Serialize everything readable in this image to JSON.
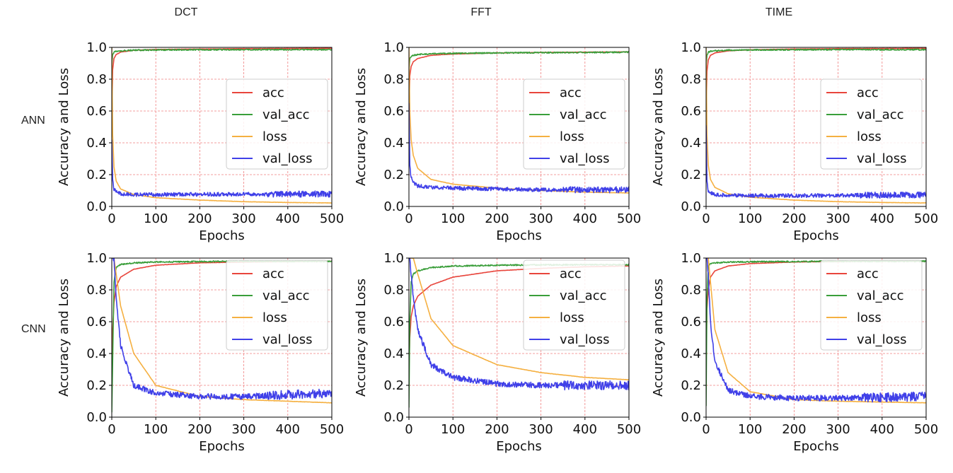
{
  "figure": {
    "column_titles": [
      "DCT",
      "FFT",
      "TIME"
    ],
    "row_labels": [
      "ANN",
      "CNN"
    ]
  },
  "colors": {
    "acc": "#e8453c",
    "val_acc": "#3a9e3a",
    "loss": "#f5b041",
    "val_loss": "#4040e8",
    "grid": "#f08080"
  },
  "chart_data": [
    {
      "type": "line",
      "panel": "ANN-DCT",
      "row": "ANN",
      "column": "DCT",
      "title": "",
      "xlabel": "Epochs",
      "ylabel": "Accuracy and Loss",
      "xlim": [
        0,
        500
      ],
      "ylim": [
        0,
        1.0
      ],
      "xticks": [
        0,
        100,
        200,
        300,
        400,
        500
      ],
      "yticks": [
        0.0,
        0.2,
        0.4,
        0.6,
        0.8,
        1.0
      ],
      "grid": true,
      "legend_position": "center-right",
      "series": [
        {
          "name": "acc",
          "x": [
            0,
            2,
            5,
            10,
            20,
            50,
            100,
            200,
            300,
            400,
            500
          ],
          "y": [
            0.55,
            0.86,
            0.93,
            0.955,
            0.97,
            0.982,
            0.987,
            0.99,
            0.992,
            0.993,
            0.994
          ]
        },
        {
          "name": "val_acc",
          "x": [
            0,
            2,
            5,
            10,
            20,
            50,
            100,
            200,
            300,
            400,
            500
          ],
          "y": [
            0.88,
            0.955,
            0.97,
            0.975,
            0.978,
            0.982,
            0.984,
            0.985,
            0.986,
            0.986,
            0.986
          ]
        },
        {
          "name": "loss",
          "x": [
            0,
            2,
            5,
            10,
            20,
            50,
            100,
            200,
            300,
            400,
            500
          ],
          "y": [
            1.0,
            0.45,
            0.25,
            0.16,
            0.11,
            0.075,
            0.055,
            0.04,
            0.03,
            0.025,
            0.022
          ]
        },
        {
          "name": "val_loss",
          "x": [
            0,
            2,
            5,
            10,
            20,
            50,
            100,
            200,
            300,
            400,
            500
          ],
          "y": [
            0.42,
            0.17,
            0.11,
            0.09,
            0.08,
            0.075,
            0.075,
            0.076,
            0.077,
            0.078,
            0.078
          ]
        }
      ]
    },
    {
      "type": "line",
      "panel": "ANN-FFT",
      "row": "ANN",
      "column": "FFT",
      "title": "",
      "xlabel": "Epochs",
      "ylabel": "Accuracy and Loss",
      "xlim": [
        0,
        500
      ],
      "ylim": [
        0,
        1.0
      ],
      "xticks": [
        0,
        100,
        200,
        300,
        400,
        500
      ],
      "yticks": [
        0.0,
        0.2,
        0.4,
        0.6,
        0.8,
        1.0
      ],
      "grid": true,
      "legend_position": "center-right",
      "series": [
        {
          "name": "acc",
          "x": [
            0,
            2,
            5,
            10,
            20,
            50,
            100,
            200,
            300,
            400,
            500
          ],
          "y": [
            0.6,
            0.82,
            0.88,
            0.91,
            0.93,
            0.95,
            0.958,
            0.965,
            0.968,
            0.97,
            0.972
          ]
        },
        {
          "name": "val_acc",
          "x": [
            0,
            2,
            5,
            10,
            20,
            50,
            100,
            200,
            300,
            400,
            500
          ],
          "y": [
            0.85,
            0.93,
            0.945,
            0.95,
            0.955,
            0.96,
            0.962,
            0.965,
            0.967,
            0.968,
            0.97
          ]
        },
        {
          "name": "loss",
          "x": [
            0,
            2,
            5,
            10,
            20,
            50,
            100,
            200,
            300,
            400,
            500
          ],
          "y": [
            1.0,
            0.6,
            0.42,
            0.32,
            0.24,
            0.17,
            0.14,
            0.115,
            0.1,
            0.09,
            0.085
          ]
        },
        {
          "name": "val_loss",
          "x": [
            0,
            2,
            5,
            10,
            20,
            50,
            100,
            200,
            300,
            400,
            500
          ],
          "y": [
            0.65,
            0.26,
            0.18,
            0.15,
            0.13,
            0.12,
            0.115,
            0.11,
            0.105,
            0.105,
            0.105
          ]
        }
      ]
    },
    {
      "type": "line",
      "panel": "ANN-TIME",
      "row": "ANN",
      "column": "TIME",
      "title": "",
      "xlabel": "Epochs",
      "ylabel": "Accuracy and Loss",
      "xlim": [
        0,
        500
      ],
      "ylim": [
        0,
        1.0
      ],
      "xticks": [
        0,
        100,
        200,
        300,
        400,
        500
      ],
      "yticks": [
        0.0,
        0.2,
        0.4,
        0.6,
        0.8,
        1.0
      ],
      "grid": true,
      "legend_position": "center-right",
      "series": [
        {
          "name": "acc",
          "x": [
            0,
            2,
            5,
            10,
            20,
            50,
            100,
            200,
            300,
            400,
            500
          ],
          "y": [
            0.56,
            0.85,
            0.92,
            0.95,
            0.965,
            0.978,
            0.985,
            0.99,
            0.992,
            0.993,
            0.994
          ]
        },
        {
          "name": "val_acc",
          "x": [
            0,
            2,
            5,
            10,
            20,
            50,
            100,
            200,
            300,
            400,
            500
          ],
          "y": [
            0.88,
            0.95,
            0.97,
            0.975,
            0.978,
            0.982,
            0.984,
            0.985,
            0.986,
            0.986,
            0.986
          ]
        },
        {
          "name": "loss",
          "x": [
            0,
            2,
            5,
            10,
            20,
            50,
            100,
            200,
            300,
            400,
            500
          ],
          "y": [
            1.0,
            0.45,
            0.26,
            0.17,
            0.12,
            0.08,
            0.058,
            0.04,
            0.03,
            0.025,
            0.022
          ]
        },
        {
          "name": "val_loss",
          "x": [
            0,
            2,
            5,
            10,
            20,
            50,
            100,
            200,
            300,
            400,
            500
          ],
          "y": [
            0.51,
            0.16,
            0.1,
            0.085,
            0.075,
            0.07,
            0.068,
            0.068,
            0.07,
            0.071,
            0.072
          ]
        }
      ]
    },
    {
      "type": "line",
      "panel": "CNN-DCT",
      "row": "CNN",
      "column": "DCT",
      "title": "",
      "xlabel": "Epochs",
      "ylabel": "Accuracy and Loss",
      "xlim": [
        0,
        500
      ],
      "ylim": [
        0,
        1.0
      ],
      "xticks": [
        0,
        100,
        200,
        300,
        400,
        500
      ],
      "yticks": [
        0.0,
        0.2,
        0.4,
        0.6,
        0.8,
        1.0
      ],
      "grid": true,
      "legend_position": "upper-right",
      "series": [
        {
          "name": "acc",
          "x": [
            0,
            2,
            5,
            10,
            20,
            50,
            100,
            200,
            300,
            400,
            500
          ],
          "y": [
            0.33,
            0.55,
            0.72,
            0.82,
            0.88,
            0.93,
            0.955,
            0.97,
            0.975,
            0.978,
            0.98
          ]
        },
        {
          "name": "val_acc",
          "x": [
            0,
            2,
            5,
            10,
            20,
            50,
            100,
            200,
            300,
            400,
            500
          ],
          "y": [
            0.03,
            0.35,
            0.85,
            0.94,
            0.96,
            0.97,
            0.975,
            0.978,
            0.98,
            0.98,
            0.98
          ]
        },
        {
          "name": "loss",
          "x": [
            0,
            2,
            5,
            10,
            20,
            50,
            100,
            200,
            300,
            400,
            500
          ],
          "y": [
            1.0,
            1.0,
            1.0,
            0.9,
            0.7,
            0.4,
            0.2,
            0.13,
            0.11,
            0.1,
            0.09
          ]
        },
        {
          "name": "val_loss",
          "x": [
            0,
            2,
            5,
            10,
            20,
            50,
            100,
            200,
            300,
            400,
            500
          ],
          "y": [
            1.0,
            1.0,
            1.0,
            0.75,
            0.45,
            0.2,
            0.15,
            0.13,
            0.13,
            0.14,
            0.15
          ]
        }
      ]
    },
    {
      "type": "line",
      "panel": "CNN-FFT",
      "row": "CNN",
      "column": "FFT",
      "title": "",
      "xlabel": "Epochs",
      "ylabel": "Accuracy and Loss",
      "xlim": [
        0,
        500
      ],
      "ylim": [
        0,
        1.0
      ],
      "xticks": [
        0,
        100,
        200,
        300,
        400,
        500
      ],
      "yticks": [
        0.0,
        0.2,
        0.4,
        0.6,
        0.8,
        1.0
      ],
      "grid": true,
      "legend_position": "upper-right",
      "series": [
        {
          "name": "acc",
          "x": [
            0,
            2,
            5,
            10,
            20,
            50,
            100,
            200,
            300,
            400,
            500
          ],
          "y": [
            0.3,
            0.5,
            0.63,
            0.7,
            0.76,
            0.83,
            0.88,
            0.92,
            0.935,
            0.945,
            0.95
          ]
        },
        {
          "name": "val_acc",
          "x": [
            0,
            2,
            5,
            10,
            20,
            50,
            100,
            200,
            300,
            400,
            500
          ],
          "y": [
            0.06,
            0.6,
            0.85,
            0.9,
            0.92,
            0.94,
            0.95,
            0.955,
            0.957,
            0.958,
            0.958
          ]
        },
        {
          "name": "loss",
          "x": [
            0,
            2,
            5,
            10,
            20,
            50,
            100,
            200,
            300,
            400,
            500
          ],
          "y": [
            1.0,
            1.0,
            1.0,
            1.0,
            0.9,
            0.62,
            0.45,
            0.33,
            0.28,
            0.25,
            0.235
          ]
        },
        {
          "name": "val_loss",
          "x": [
            0,
            2,
            5,
            10,
            20,
            50,
            100,
            200,
            300,
            400,
            500
          ],
          "y": [
            1.0,
            1.0,
            0.9,
            0.75,
            0.55,
            0.33,
            0.25,
            0.21,
            0.2,
            0.2,
            0.2
          ]
        }
      ]
    },
    {
      "type": "line",
      "panel": "CNN-TIME",
      "row": "CNN",
      "column": "TIME",
      "title": "",
      "xlabel": "Epochs",
      "ylabel": "Accuracy and Loss",
      "xlim": [
        0,
        500
      ],
      "ylim": [
        0,
        1.0
      ],
      "xticks": [
        0,
        100,
        200,
        300,
        400,
        500
      ],
      "yticks": [
        0.0,
        0.2,
        0.4,
        0.6,
        0.8,
        1.0
      ],
      "grid": true,
      "legend_position": "upper-right",
      "series": [
        {
          "name": "acc",
          "x": [
            0,
            2,
            5,
            10,
            20,
            50,
            100,
            200,
            300,
            400,
            500
          ],
          "y": [
            0.37,
            0.68,
            0.8,
            0.88,
            0.92,
            0.95,
            0.965,
            0.975,
            0.978,
            0.98,
            0.98
          ]
        },
        {
          "name": "val_acc",
          "x": [
            0,
            2,
            5,
            10,
            20,
            50,
            100,
            200,
            300,
            400,
            500
          ],
          "y": [
            0.07,
            0.75,
            0.95,
            0.965,
            0.97,
            0.975,
            0.977,
            0.978,
            0.98,
            0.98,
            0.98
          ]
        },
        {
          "name": "loss",
          "x": [
            0,
            2,
            5,
            10,
            20,
            50,
            100,
            200,
            300,
            400,
            500
          ],
          "y": [
            1.0,
            1.0,
            1.0,
            0.85,
            0.55,
            0.28,
            0.16,
            0.11,
            0.1,
            0.095,
            0.09
          ]
        },
        {
          "name": "val_loss",
          "x": [
            0,
            2,
            5,
            10,
            20,
            50,
            100,
            200,
            300,
            400,
            500
          ],
          "y": [
            1.0,
            1.0,
            0.9,
            0.6,
            0.35,
            0.17,
            0.13,
            0.12,
            0.12,
            0.125,
            0.13
          ]
        }
      ]
    }
  ]
}
